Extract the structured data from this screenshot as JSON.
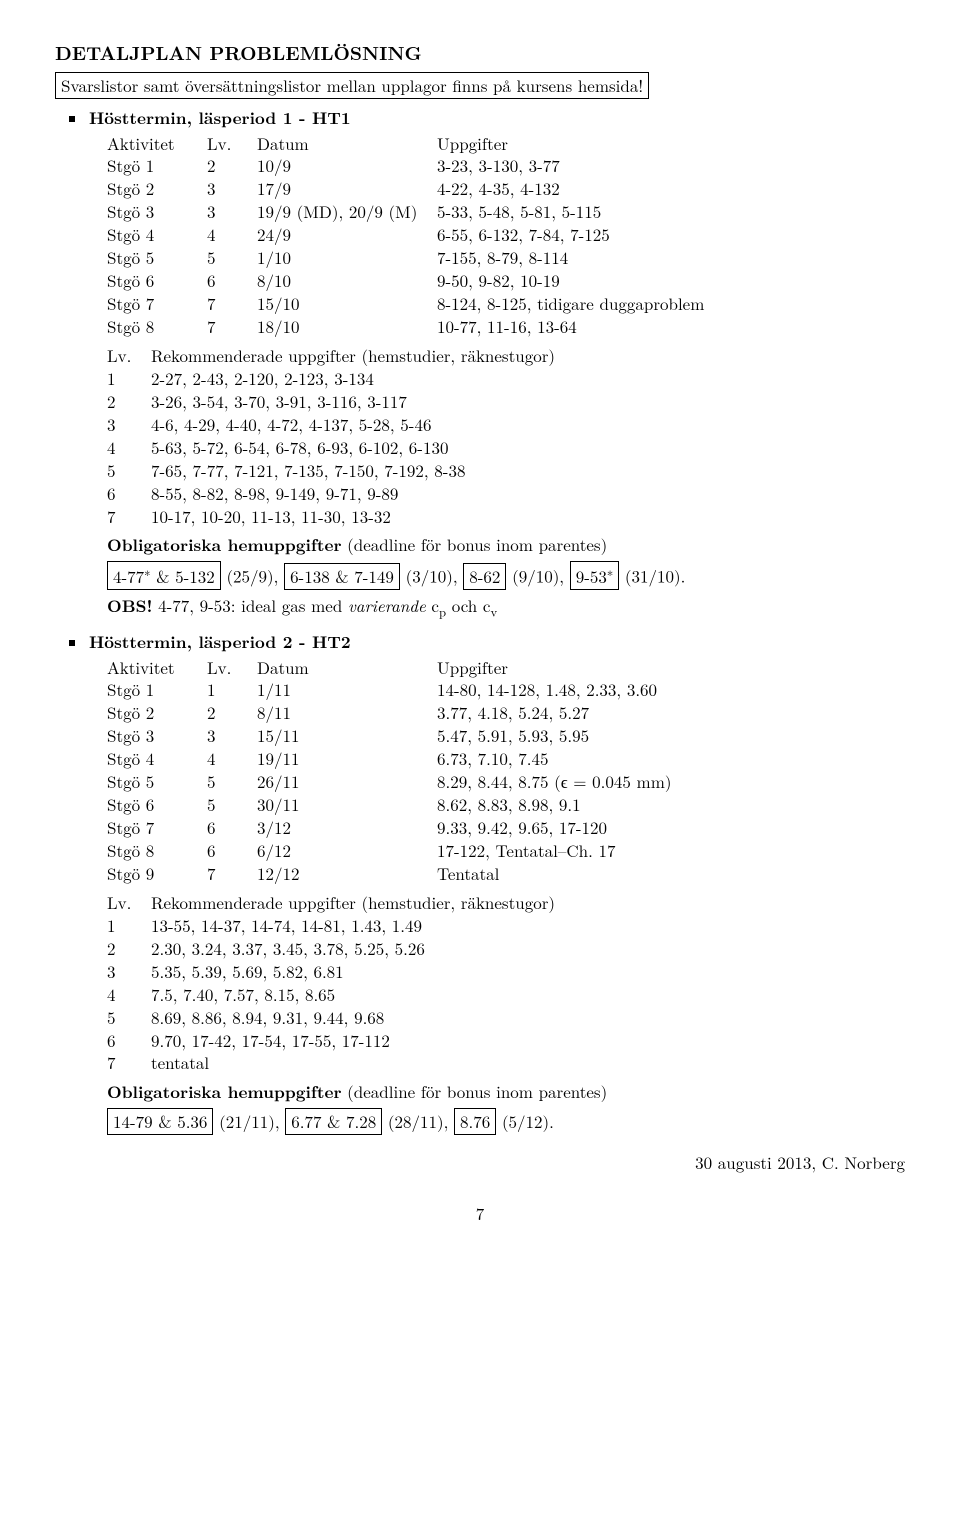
{
  "title": "DETALJPLAN PROBLEMLÖSNING",
  "intro_boxed": "Svarslistor samt översättningslistor mellan upplagor finns på kursens hemsida!",
  "ht1_heading": "Hösttermin, läsperiod 1 - HT1",
  "table_headers": {
    "akt": "Aktivitet",
    "lv": "Lv.",
    "dat": "Datum",
    "upp": "Uppgifter"
  },
  "ht1_rows": [
    [
      "Stgö 1",
      "2",
      "10/9",
      "3-23, 3-130, 3-77"
    ],
    [
      "Stgö 2",
      "3",
      "17/9",
      "4-22, 4-35, 4-132"
    ],
    [
      "Stgö 3",
      "3",
      "19/9 (MD), 20/9 (M)",
      "5-33, 5-48, 5-81, 5-115"
    ],
    [
      "Stgö 4",
      "4",
      "24/9",
      "6-55, 6-132, 7-84, 7-125"
    ],
    [
      "Stgö 5",
      "5",
      "1/10",
      "7-155, 8-79, 8-114"
    ],
    [
      "Stgö 6",
      "6",
      "8/10",
      "9-50, 9-82, 10-19"
    ],
    [
      "Stgö 7",
      "7",
      "15/10",
      "8-124, 8-125, tidigare duggaproblem"
    ],
    [
      "Stgö 8",
      "7",
      "18/10",
      "10-77, 11-16, 13-64"
    ]
  ],
  "rec_heading_lv": "Lv.",
  "rec_heading_text": "Rekommenderade uppgifter (hemstudier, räknestugor)",
  "ht1_rec": [
    [
      "1",
      "2-27, 2-43, 2-120, 2-123, 3-134"
    ],
    [
      "2",
      "3-26, 3-54, 3-70, 3-91, 3-116, 3-117"
    ],
    [
      "3",
      "4-6, 4-29, 4-40, 4-72, 4-137, 5-28, 5-46"
    ],
    [
      "4",
      "5-63, 5-72, 6-54, 6-78, 6-93, 6-102, 6-130"
    ],
    [
      "5",
      "7-65, 7-77, 7-121, 7-135, 7-150, 7-192, 8-38"
    ],
    [
      "6",
      "8-55, 8-82, 8-98, 9-149, 9-71, 9-89"
    ],
    [
      "7",
      "10-17, 10-20, 11-13, 11-30, 13-32"
    ]
  ],
  "oblig_heading": "Obligatoriska hemuppgifter",
  "oblig_suffix": " (deadline för bonus inom parentes)",
  "ht1_oblig": {
    "b1": "4-77* & 5-132",
    "d1": "(25/9),",
    "b2": "6-138 & 7-149",
    "d2": "(3/10),",
    "b3": "8-62",
    "d3": "(9/10),",
    "b4": "9-53*",
    "d4": "(31/10)."
  },
  "obs_label": "OBS!",
  "obs_text_a": " 4-77, 9-53: ideal gas med ",
  "obs_ital": "varierande",
  "obs_text_b1": " c",
  "obs_sub1": "p",
  "obs_text_mid": " och c",
  "obs_sub2": "v",
  "ht2_heading": "Hösttermin, läsperiod 2 - HT2",
  "ht2_rows": [
    [
      "Stgö 1",
      "1",
      "1/11",
      "14-80, 14-128, 1.48, 2.33, 3.60"
    ],
    [
      "Stgö 2",
      "2",
      "8/11",
      "3.77, 4.18, 5.24, 5.27"
    ],
    [
      "Stgö 3",
      "3",
      "15/11",
      "5.47, 5.91, 5.93, 5.95"
    ],
    [
      "Stgö 4",
      "4",
      "19/11",
      "6.73, 7.10, 7.45"
    ],
    [
      "Stgö 5",
      "5",
      "26/11",
      "8.29, 8.44, 8.75 (ϵ = 0.045 mm)"
    ],
    [
      "Stgö 6",
      "5",
      "30/11",
      "8.62, 8.83, 8.98, 9.1"
    ],
    [
      "Stgö 7",
      "6",
      "3/12",
      "9.33, 9.42, 9.65, 17-120"
    ],
    [
      "Stgö 8",
      "6",
      "6/12",
      "17-122, Tentatal–Ch. 17"
    ],
    [
      "Stgö 9",
      "7",
      "12/12",
      "Tentatal"
    ]
  ],
  "ht2_rec": [
    [
      "1",
      "13-55, 14-37, 14-74, 14-81, 1.43, 1.49"
    ],
    [
      "2",
      "2.30, 3.24, 3.37, 3.45, 3.78, 5.25, 5.26"
    ],
    [
      "3",
      "5.35, 5.39, 5.69, 5.82, 6.81"
    ],
    [
      "4",
      "7.5, 7.40, 7.57, 8.15, 8.65"
    ],
    [
      "5",
      "8.69, 8.86, 8.94, 9.31, 9.44, 9.68"
    ],
    [
      "6",
      "9.70, 17-42, 17-54, 17-55, 17-112"
    ],
    [
      "7",
      "tentatal"
    ]
  ],
  "ht2_oblig": {
    "b1": "14-79 & 5.36",
    "d1": "(21/11),",
    "b2": "6.77 & 7.28",
    "d2": "(28/11),",
    "b3": "8.76",
    "d3": "(5/12)."
  },
  "footer": "30 augusti 2013, C. Norberg",
  "page": "7"
}
